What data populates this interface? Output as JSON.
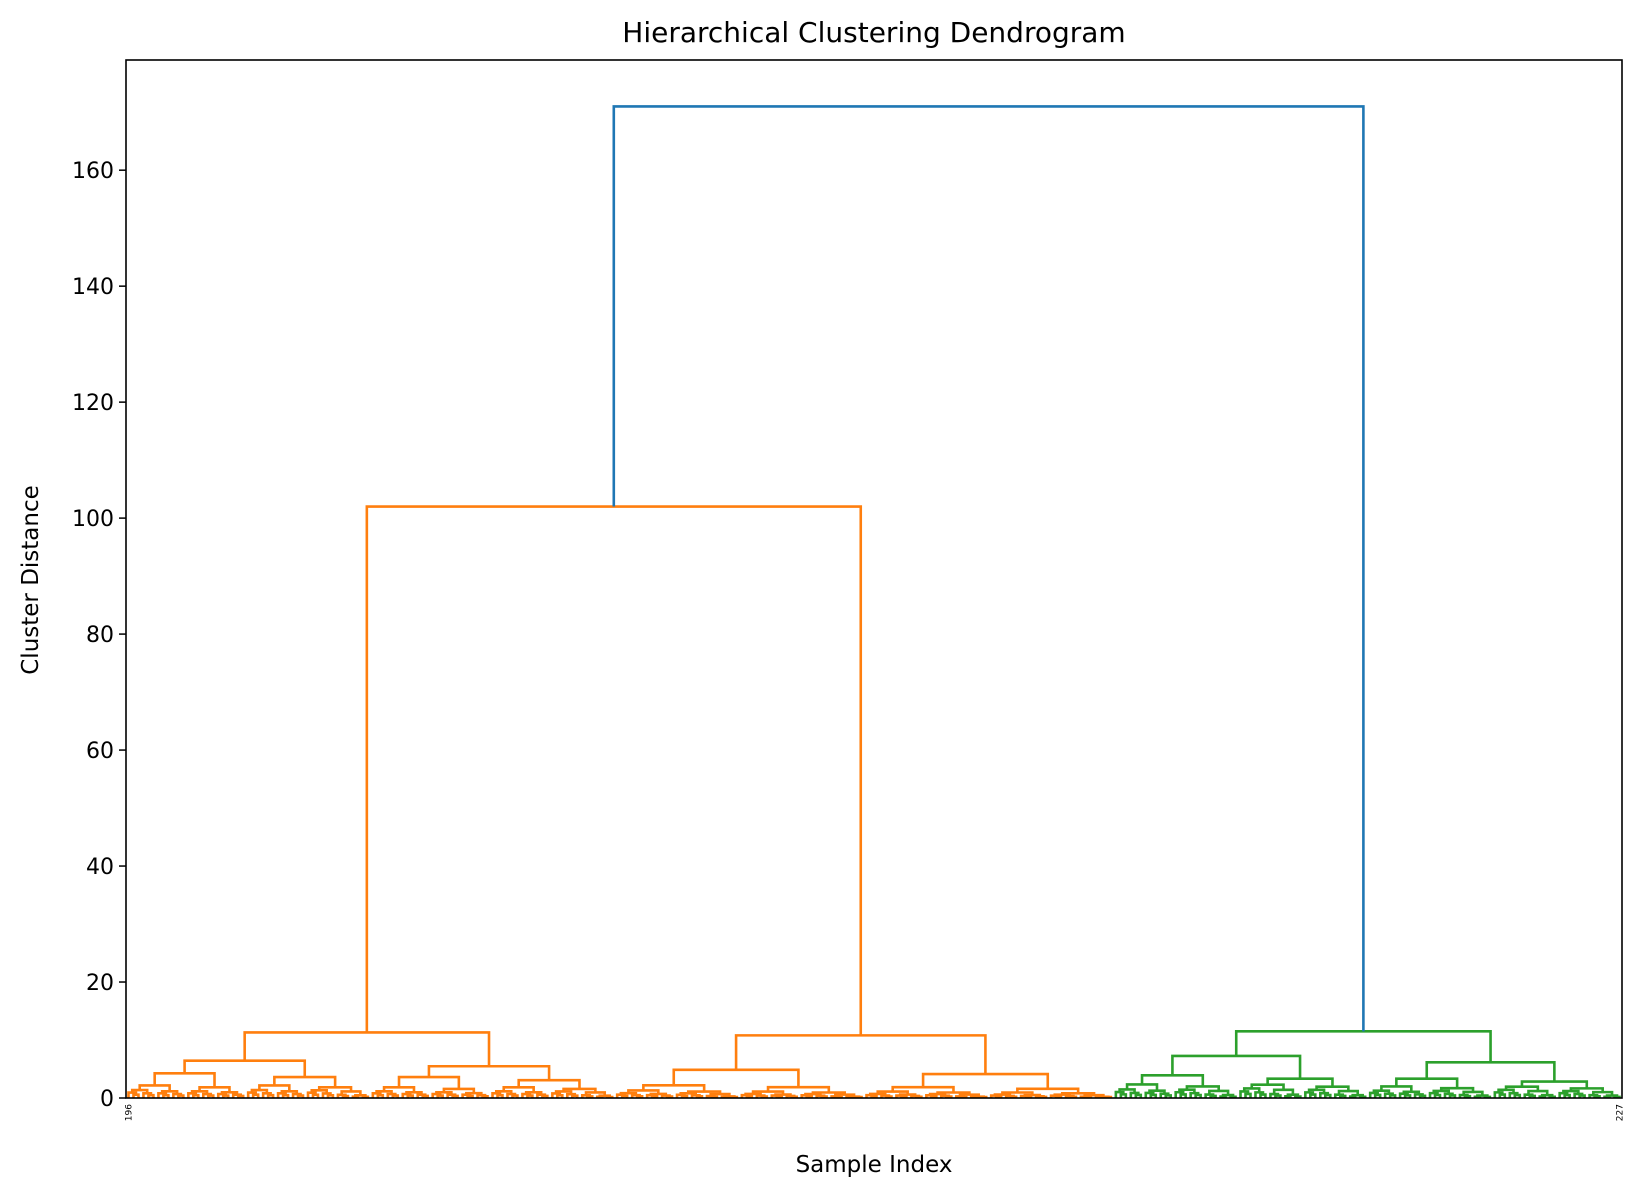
{
  "chart_data": {
    "type": "dendrogram",
    "title": "Hierarchical Clustering Dendrogram",
    "xlabel": "Sample Index",
    "ylabel": "Cluster Distance",
    "ylim": [
      0,
      179
    ],
    "yticks": [
      0,
      20,
      40,
      60,
      80,
      100,
      120,
      140,
      160
    ],
    "grid": false,
    "colors": {
      "link_root": "#1f77b4",
      "cluster_1": "#ff7f0e",
      "cluster_2": "#2ca02c"
    },
    "leaf_count": 300,
    "merges": [
      {
        "name": "root",
        "height": 171,
        "color": "#1f77b4"
      },
      {
        "name": "orange-top",
        "height": 102,
        "color": "#ff7f0e"
      },
      {
        "name": "green-top",
        "height": 11.5,
        "color": "#2ca02c"
      },
      {
        "name": "orange-left",
        "height": 11.3,
        "color": "#ff7f0e"
      },
      {
        "name": "orange-right",
        "height": 10.8,
        "color": "#ff7f0e"
      }
    ],
    "leaf_labels_visible": [
      "196",
      "227"
    ]
  }
}
